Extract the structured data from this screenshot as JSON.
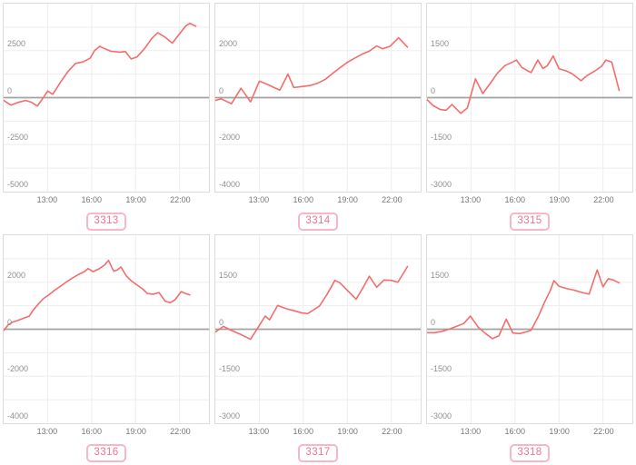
{
  "colors": {
    "line": "#f56c6c",
    "grid_minor": "#ededed",
    "zero_line": "#a3a3a3",
    "panel_border": "#dcdcdc",
    "y_label": "#8f8f8f",
    "x_label": "#767676",
    "badge_border": "#f8b6c6",
    "badge_text": "#ec7492"
  },
  "x_axis": {
    "range_hours": [
      10,
      24
    ],
    "tick_hours": [
      13,
      16,
      19,
      22
    ],
    "tick_labels": [
      "13:00",
      "16:00",
      "19:00",
      "22:00"
    ]
  },
  "chart_data": [
    {
      "type": "line",
      "badge_label": "3313",
      "ylim": [
        -5000,
        5000
      ],
      "y_ticks": [
        5000,
        2500,
        0,
        -2500,
        -5000
      ],
      "x_ticks": [
        "13:00",
        "16:00",
        "19:00",
        "22:00"
      ],
      "series": [
        {
          "name": "value",
          "points": [
            [
              10.0,
              -150
            ],
            [
              10.5,
              -400
            ],
            [
              11.0,
              -250
            ],
            [
              11.5,
              -150
            ],
            [
              11.9,
              -250
            ],
            [
              12.3,
              -450
            ],
            [
              12.75,
              50
            ],
            [
              13.0,
              350
            ],
            [
              13.35,
              180
            ],
            [
              13.9,
              850
            ],
            [
              14.4,
              1400
            ],
            [
              14.9,
              1820
            ],
            [
              15.4,
              1900
            ],
            [
              15.9,
              2100
            ],
            [
              16.2,
              2500
            ],
            [
              16.55,
              2730
            ],
            [
              16.9,
              2600
            ],
            [
              17.3,
              2470
            ],
            [
              17.9,
              2420
            ],
            [
              18.3,
              2450
            ],
            [
              18.7,
              2060
            ],
            [
              19.1,
              2170
            ],
            [
              19.6,
              2600
            ],
            [
              20.1,
              3150
            ],
            [
              20.5,
              3450
            ],
            [
              21.0,
              3220
            ],
            [
              21.5,
              2900
            ],
            [
              22.0,
              3400
            ],
            [
              22.4,
              3800
            ],
            [
              22.7,
              3950
            ],
            [
              23.1,
              3800
            ]
          ]
        }
      ]
    },
    {
      "type": "line",
      "badge_label": "3314",
      "ylim": [
        -4000,
        4000
      ],
      "y_ticks": [
        4000,
        2000,
        0,
        -2000,
        -4000
      ],
      "x_ticks": [
        "13:00",
        "16:00",
        "19:00",
        "22:00"
      ],
      "series": [
        {
          "name": "value",
          "points": [
            [
              10.0,
              -120
            ],
            [
              10.4,
              -50
            ],
            [
              11.1,
              -260
            ],
            [
              11.75,
              400
            ],
            [
              12.4,
              -180
            ],
            [
              13.0,
              700
            ],
            [
              13.5,
              580
            ],
            [
              14.0,
              430
            ],
            [
              14.4,
              320
            ],
            [
              14.95,
              1000
            ],
            [
              15.35,
              430
            ],
            [
              15.9,
              470
            ],
            [
              16.5,
              520
            ],
            [
              17.0,
              620
            ],
            [
              17.5,
              780
            ],
            [
              18.1,
              1080
            ],
            [
              18.6,
              1320
            ],
            [
              19.0,
              1500
            ],
            [
              19.5,
              1680
            ],
            [
              20.0,
              1850
            ],
            [
              20.5,
              1980
            ],
            [
              21.0,
              2200
            ],
            [
              21.4,
              2080
            ],
            [
              21.9,
              2180
            ],
            [
              22.5,
              2550
            ],
            [
              23.1,
              2150
            ]
          ]
        }
      ]
    },
    {
      "type": "line",
      "badge_label": "3315",
      "ylim": [
        -3000,
        3000
      ],
      "y_ticks": [
        3000,
        1500,
        0,
        -1500,
        -3000
      ],
      "x_ticks": [
        "13:00",
        "16:00",
        "19:00",
        "22:00"
      ],
      "series": [
        {
          "name": "value",
          "points": [
            [
              10.0,
              -60
            ],
            [
              10.4,
              -250
            ],
            [
              10.9,
              -380
            ],
            [
              11.3,
              -400
            ],
            [
              11.7,
              -220
            ],
            [
              12.3,
              -500
            ],
            [
              12.75,
              -330
            ],
            [
              13.3,
              600
            ],
            [
              13.8,
              130
            ],
            [
              14.3,
              450
            ],
            [
              14.8,
              780
            ],
            [
              15.3,
              1020
            ],
            [
              15.9,
              1150
            ],
            [
              16.1,
              1200
            ],
            [
              16.45,
              970
            ],
            [
              16.8,
              870
            ],
            [
              17.1,
              800
            ],
            [
              17.55,
              1200
            ],
            [
              17.9,
              930
            ],
            [
              18.2,
              1020
            ],
            [
              18.6,
              1330
            ],
            [
              19.0,
              920
            ],
            [
              19.5,
              850
            ],
            [
              19.9,
              760
            ],
            [
              20.5,
              540
            ],
            [
              20.9,
              700
            ],
            [
              21.4,
              840
            ],
            [
              21.9,
              1000
            ],
            [
              22.2,
              1200
            ],
            [
              22.6,
              1130
            ],
            [
              23.1,
              230
            ]
          ]
        }
      ]
    },
    {
      "type": "line",
      "badge_label": "3316",
      "ylim": [
        -4000,
        4000
      ],
      "y_ticks": [
        4000,
        2000,
        0,
        -2000,
        -4000
      ],
      "x_ticks": [
        "13:00",
        "16:00",
        "19:00",
        "22:00"
      ],
      "series": [
        {
          "name": "value",
          "points": [
            [
              10.0,
              -60
            ],
            [
              10.3,
              180
            ],
            [
              10.6,
              300
            ],
            [
              11.0,
              380
            ],
            [
              11.4,
              480
            ],
            [
              11.75,
              560
            ],
            [
              12.0,
              800
            ],
            [
              12.35,
              1060
            ],
            [
              12.7,
              1300
            ],
            [
              13.1,
              1470
            ],
            [
              13.5,
              1670
            ],
            [
              13.9,
              1840
            ],
            [
              14.3,
              2020
            ],
            [
              14.7,
              2180
            ],
            [
              15.1,
              2330
            ],
            [
              15.5,
              2450
            ],
            [
              15.75,
              2580
            ],
            [
              16.1,
              2450
            ],
            [
              16.5,
              2570
            ],
            [
              16.9,
              2740
            ],
            [
              17.15,
              2930
            ],
            [
              17.5,
              2470
            ],
            [
              17.75,
              2520
            ],
            [
              18.0,
              2650
            ],
            [
              18.35,
              2280
            ],
            [
              18.7,
              2060
            ],
            [
              19.1,
              1880
            ],
            [
              19.5,
              1700
            ],
            [
              19.8,
              1520
            ],
            [
              20.2,
              1490
            ],
            [
              20.6,
              1560
            ],
            [
              21.0,
              1200
            ],
            [
              21.35,
              1130
            ],
            [
              21.7,
              1260
            ],
            [
              22.1,
              1600
            ],
            [
              22.4,
              1520
            ],
            [
              22.7,
              1460
            ]
          ]
        }
      ]
    },
    {
      "type": "line",
      "badge_label": "3317",
      "ylim": [
        -3000,
        3000
      ],
      "y_ticks": [
        3000,
        1500,
        0,
        -1500,
        -3000
      ],
      "x_ticks": [
        "13:00",
        "16:00",
        "19:00",
        "22:00"
      ],
      "series": [
        {
          "name": "value",
          "points": [
            [
              10.0,
              -90
            ],
            [
              10.55,
              90
            ],
            [
              11.1,
              -40
            ],
            [
              11.7,
              -160
            ],
            [
              12.4,
              -320
            ],
            [
              13.0,
              120
            ],
            [
              13.4,
              420
            ],
            [
              13.7,
              300
            ],
            [
              14.25,
              760
            ],
            [
              14.8,
              660
            ],
            [
              15.3,
              600
            ],
            [
              15.9,
              520
            ],
            [
              16.3,
              500
            ],
            [
              16.8,
              650
            ],
            [
              17.1,
              740
            ],
            [
              17.6,
              1100
            ],
            [
              18.15,
              1560
            ],
            [
              18.5,
              1480
            ],
            [
              19.0,
              1240
            ],
            [
              19.6,
              960
            ],
            [
              20.1,
              1350
            ],
            [
              20.5,
              1690
            ],
            [
              21.0,
              1340
            ],
            [
              21.5,
              1570
            ],
            [
              22.0,
              1560
            ],
            [
              22.45,
              1500
            ],
            [
              23.1,
              2000
            ]
          ]
        }
      ]
    },
    {
      "type": "line",
      "badge_label": "3318",
      "ylim": [
        -3000,
        3000
      ],
      "y_ticks": [
        3000,
        1500,
        0,
        -1500,
        -3000
      ],
      "x_ticks": [
        "13:00",
        "16:00",
        "19:00",
        "22:00"
      ],
      "series": [
        {
          "name": "value",
          "points": [
            [
              10.0,
              -110
            ],
            [
              10.5,
              -110
            ],
            [
              11.0,
              -70
            ],
            [
              11.5,
              0
            ],
            [
              12.0,
              90
            ],
            [
              12.5,
              180
            ],
            [
              12.95,
              420
            ],
            [
              13.5,
              60
            ],
            [
              14.0,
              -140
            ],
            [
              14.45,
              -300
            ],
            [
              14.9,
              -210
            ],
            [
              15.4,
              320
            ],
            [
              15.85,
              -120
            ],
            [
              16.3,
              -140
            ],
            [
              16.8,
              -80
            ],
            [
              17.1,
              -30
            ],
            [
              17.6,
              420
            ],
            [
              18.0,
              850
            ],
            [
              18.4,
              1230
            ],
            [
              18.65,
              1550
            ],
            [
              19.0,
              1370
            ],
            [
              19.5,
              1300
            ],
            [
              20.0,
              1250
            ],
            [
              20.5,
              1180
            ],
            [
              21.05,
              1120
            ],
            [
              21.6,
              1890
            ],
            [
              22.0,
              1350
            ],
            [
              22.35,
              1610
            ],
            [
              22.7,
              1570
            ],
            [
              23.1,
              1480
            ]
          ]
        }
      ]
    }
  ]
}
